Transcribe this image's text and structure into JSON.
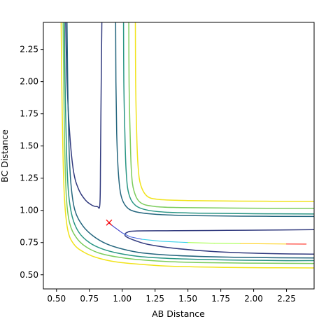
{
  "chart_data": {
    "type": "contour",
    "title": "",
    "xlabel": "AB Distance",
    "ylabel": "BC Distance",
    "xlim": [
      0.4,
      2.46
    ],
    "ylim": [
      0.39,
      2.46
    ],
    "xticks": [
      0.5,
      0.75,
      1.0,
      1.25,
      1.5,
      1.75,
      2.0,
      2.25
    ],
    "xtick_labels": [
      "0.50",
      "0.75",
      "1.00",
      "1.25",
      "1.50",
      "1.75",
      "2.00",
      "2.25"
    ],
    "yticks": [
      0.5,
      0.75,
      1.0,
      1.25,
      1.5,
      1.75,
      2.0,
      2.25
    ],
    "ytick_labels": [
      "0.50",
      "0.75",
      "1.00",
      "1.25",
      "1.50",
      "1.75",
      "2.00",
      "2.25"
    ],
    "grid": false,
    "legend": "none",
    "contours": [
      {
        "level": 1,
        "color": "#313a7e",
        "segments": [
          [
            [
              0.57,
              2.46
            ],
            [
              0.58,
              2.0
            ],
            [
              0.6,
              1.6
            ],
            [
              0.63,
              1.3
            ],
            [
              0.67,
              1.16
            ],
            [
              0.72,
              1.08
            ],
            [
              0.77,
              1.04
            ],
            [
              0.81,
              1.03
            ],
            [
              0.83,
              1.05
            ],
            [
              0.835,
              1.4
            ],
            [
              0.84,
              2.0
            ],
            [
              0.845,
              2.46
            ]
          ],
          [
            [
              2.46,
              0.85
            ],
            [
              2.2,
              0.848
            ],
            [
              1.8,
              0.845
            ],
            [
              1.4,
              0.842
            ],
            [
              1.1,
              0.84
            ],
            [
              1.04,
              0.83
            ],
            [
              1.02,
              0.81
            ],
            [
              1.04,
              0.79
            ],
            [
              1.1,
              0.765
            ],
            [
              1.2,
              0.735
            ],
            [
              1.4,
              0.705
            ],
            [
              1.7,
              0.68
            ],
            [
              2.1,
              0.665
            ],
            [
              2.46,
              0.66
            ]
          ]
        ]
      },
      {
        "level": 2,
        "color": "#25667e",
        "segments": [
          [
            [
              0.58,
              2.46
            ],
            [
              0.585,
              2.0
            ],
            [
              0.595,
              1.5
            ],
            [
              0.61,
              1.2
            ],
            [
              0.64,
              1.0
            ],
            [
              0.7,
              0.88
            ],
            [
              0.78,
              0.8
            ],
            [
              0.88,
              0.74
            ],
            [
              1.0,
              0.7
            ],
            [
              1.15,
              0.67
            ],
            [
              1.4,
              0.65
            ],
            [
              1.8,
              0.637
            ],
            [
              2.2,
              0.632
            ],
            [
              2.46,
              0.63
            ]
          ],
          [
            [
              0.95,
              2.46
            ],
            [
              0.952,
              2.0
            ],
            [
              0.958,
              1.6
            ],
            [
              0.97,
              1.3
            ],
            [
              0.99,
              1.12
            ],
            [
              1.03,
              1.03
            ],
            [
              1.1,
              0.99
            ],
            [
              1.25,
              0.97
            ],
            [
              1.5,
              0.96
            ],
            [
              1.9,
              0.955
            ],
            [
              2.46,
              0.953
            ]
          ]
        ]
      },
      {
        "level": 3,
        "color": "#2a9684",
        "segments": [
          [
            [
              0.56,
              2.46
            ],
            [
              0.565,
              2.0
            ],
            [
              0.575,
              1.5
            ],
            [
              0.59,
              1.15
            ],
            [
              0.62,
              0.95
            ],
            [
              0.67,
              0.83
            ],
            [
              0.75,
              0.75
            ],
            [
              0.85,
              0.7
            ],
            [
              0.98,
              0.665
            ],
            [
              1.15,
              0.64
            ],
            [
              1.4,
              0.625
            ],
            [
              1.8,
              0.615
            ],
            [
              2.2,
              0.61
            ],
            [
              2.46,
              0.61
            ]
          ],
          [
            [
              1.01,
              2.46
            ],
            [
              1.012,
              2.0
            ],
            [
              1.02,
              1.6
            ],
            [
              1.03,
              1.3
            ],
            [
              1.05,
              1.13
            ],
            [
              1.1,
              1.04
            ],
            [
              1.2,
              1.0
            ],
            [
              1.35,
              0.985
            ],
            [
              1.6,
              0.978
            ],
            [
              2.0,
              0.974
            ],
            [
              2.46,
              0.972
            ]
          ]
        ]
      },
      {
        "level": 4,
        "color": "#7ccc5c",
        "segments": [
          [
            [
              0.55,
              2.46
            ],
            [
              0.555,
              2.0
            ],
            [
              0.562,
              1.5
            ],
            [
              0.575,
              1.1
            ],
            [
              0.6,
              0.9
            ],
            [
              0.65,
              0.79
            ],
            [
              0.72,
              0.72
            ],
            [
              0.82,
              0.67
            ],
            [
              0.95,
              0.64
            ],
            [
              1.1,
              0.62
            ],
            [
              1.4,
              0.6
            ],
            [
              1.8,
              0.592
            ],
            [
              2.2,
              0.589
            ],
            [
              2.46,
              0.588
            ]
          ],
          [
            [
              1.05,
              2.46
            ],
            [
              1.052,
              2.0
            ],
            [
              1.06,
              1.6
            ],
            [
              1.07,
              1.3
            ],
            [
              1.09,
              1.15
            ],
            [
              1.14,
              1.06
            ],
            [
              1.25,
              1.03
            ],
            [
              1.45,
              1.022
            ],
            [
              1.8,
              1.018
            ],
            [
              2.2,
              1.016
            ],
            [
              2.46,
              1.016
            ]
          ]
        ]
      },
      {
        "level": 5,
        "color": "#f1e31b",
        "segments": [
          [
            [
              0.535,
              2.46
            ],
            [
              0.54,
              2.0
            ],
            [
              0.548,
              1.5
            ],
            [
              0.56,
              1.1
            ],
            [
              0.585,
              0.85
            ],
            [
              0.63,
              0.74
            ],
            [
              0.7,
              0.68
            ],
            [
              0.8,
              0.635
            ],
            [
              0.95,
              0.6
            ],
            [
              1.15,
              0.58
            ],
            [
              1.4,
              0.565
            ],
            [
              1.8,
              0.557
            ],
            [
              2.2,
              0.554
            ],
            [
              2.46,
              0.553
            ]
          ],
          [
            [
              1.1,
              2.46
            ],
            [
              1.102,
              2.0
            ],
            [
              1.11,
              1.6
            ],
            [
              1.12,
              1.35
            ],
            [
              1.14,
              1.2
            ],
            [
              1.19,
              1.11
            ],
            [
              1.28,
              1.085
            ],
            [
              1.5,
              1.076
            ],
            [
              1.9,
              1.072
            ],
            [
              2.46,
              1.07
            ]
          ]
        ]
      }
    ],
    "trajectory": {
      "colors": [
        "#3b3bc8",
        "#4a6ae0",
        "#36d0e8",
        "#a8ff50",
        "#ffd21e",
        "#ff2a1e"
      ],
      "points": [
        [
          0.9,
          0.9
        ],
        [
          0.94,
          0.87
        ],
        [
          1.0,
          0.825
        ],
        [
          1.06,
          0.795
        ],
        [
          1.15,
          0.775
        ],
        [
          1.3,
          0.76
        ],
        [
          1.5,
          0.75
        ],
        [
          1.7,
          0.745
        ],
        [
          1.9,
          0.742
        ],
        [
          2.1,
          0.74
        ],
        [
          2.25,
          0.739
        ],
        [
          2.4,
          0.738
        ]
      ]
    },
    "start_marker": {
      "x": 0.9,
      "y": 0.905,
      "symbol": "x",
      "color": "#ff0000"
    }
  }
}
